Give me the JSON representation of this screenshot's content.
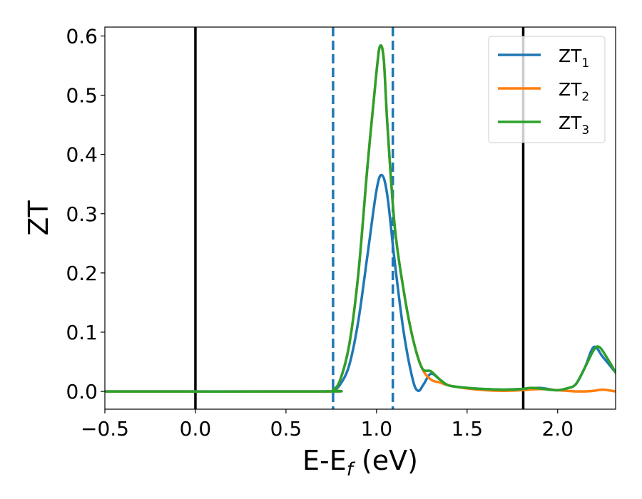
{
  "chart_data": {
    "type": "line",
    "xlabel_main": "E-E",
    "xlabel_sub": "f",
    "xlabel_unit": " (eV)",
    "ylabel": "ZT",
    "xlim": [
      -0.5,
      2.32
    ],
    "ylim": [
      -0.03,
      0.615
    ],
    "xticks": [
      -0.5,
      0.0,
      0.5,
      1.0,
      1.5,
      2.0
    ],
    "xtick_labels": [
      "−0.5",
      "0.0",
      "0.5",
      "1.0",
      "1.5",
      "2.0"
    ],
    "yticks": [
      0.0,
      0.1,
      0.2,
      0.3,
      0.4,
      0.5,
      0.6
    ],
    "ytick_labels": [
      "0.0",
      "0.1",
      "0.2",
      "0.3",
      "0.4",
      "0.5",
      "0.6"
    ],
    "grid": false,
    "legend_position": "top-right",
    "vlines": [
      {
        "x": 0.0,
        "style": "solid",
        "color": "#000000"
      },
      {
        "x": 1.81,
        "style": "solid",
        "color": "#000000"
      },
      {
        "x": 0.76,
        "style": "dashed",
        "color": "#1f77b4"
      },
      {
        "x": 1.09,
        "style": "dashed",
        "color": "#1f77b4"
      }
    ],
    "series": [
      {
        "name": "ZT",
        "sub": "1",
        "color": "#1f77b4",
        "x": [
          -0.5,
          0.7,
          0.76,
          0.8,
          0.85,
          0.9,
          0.95,
          1.0,
          1.03,
          1.06,
          1.1,
          1.15,
          1.2,
          1.23,
          1.26,
          1.3,
          1.35,
          1.4,
          1.5,
          1.6,
          1.7,
          1.8,
          1.85,
          1.9,
          1.95,
          2.0,
          2.05,
          2.1,
          2.15,
          2.2,
          2.25,
          2.32
        ],
        "y": [
          0.0,
          0.0,
          0.002,
          0.012,
          0.045,
          0.12,
          0.23,
          0.34,
          0.365,
          0.33,
          0.22,
          0.1,
          0.02,
          0.001,
          0.012,
          0.03,
          0.02,
          0.01,
          0.006,
          0.004,
          0.003,
          0.004,
          0.005,
          0.006,
          0.004,
          0.002,
          0.005,
          0.012,
          0.04,
          0.075,
          0.058,
          0.032
        ]
      },
      {
        "name": "ZT",
        "sub": "2",
        "color": "#ff7f0e",
        "x": [
          -0.5,
          0.7,
          0.76,
          0.8,
          0.85,
          0.9,
          0.95,
          1.0,
          1.02,
          1.04,
          1.06,
          1.1,
          1.15,
          1.2,
          1.25,
          1.3,
          1.35,
          1.4,
          1.5,
          1.6,
          1.7,
          1.8,
          1.9,
          2.0,
          2.05,
          2.1,
          2.15,
          2.2,
          2.25,
          2.32
        ],
        "y": [
          0.0,
          0.0,
          0.003,
          0.02,
          0.08,
          0.2,
          0.38,
          0.54,
          0.583,
          0.56,
          0.45,
          0.28,
          0.17,
          0.09,
          0.04,
          0.02,
          0.015,
          0.01,
          0.005,
          0.002,
          0.001,
          0.002,
          0.004,
          0.002,
          0.001,
          0.0,
          0.0,
          0.001,
          0.003,
          0.0
        ]
      },
      {
        "name": "ZT",
        "sub": "3",
        "color": "#2ca02c",
        "x": [
          -0.5,
          0.7,
          0.76,
          0.8,
          0.85,
          0.9,
          0.95,
          1.0,
          1.02,
          1.04,
          1.06,
          1.1,
          1.15,
          1.2,
          1.25,
          1.3,
          1.35,
          1.4,
          1.5,
          1.6,
          1.7,
          1.8,
          1.85,
          1.9,
          1.95,
          2.0,
          2.05,
          2.1,
          2.15,
          2.2,
          2.23,
          2.27,
          2.32
        ],
        "y": [
          0.0,
          0.0,
          0.003,
          0.02,
          0.08,
          0.2,
          0.38,
          0.54,
          0.583,
          0.56,
          0.45,
          0.28,
          0.17,
          0.09,
          0.04,
          0.034,
          0.02,
          0.01,
          0.006,
          0.004,
          0.003,
          0.004,
          0.006,
          0.005,
          0.003,
          0.002,
          0.005,
          0.012,
          0.04,
          0.07,
          0.075,
          0.058,
          0.032
        ]
      }
    ]
  }
}
